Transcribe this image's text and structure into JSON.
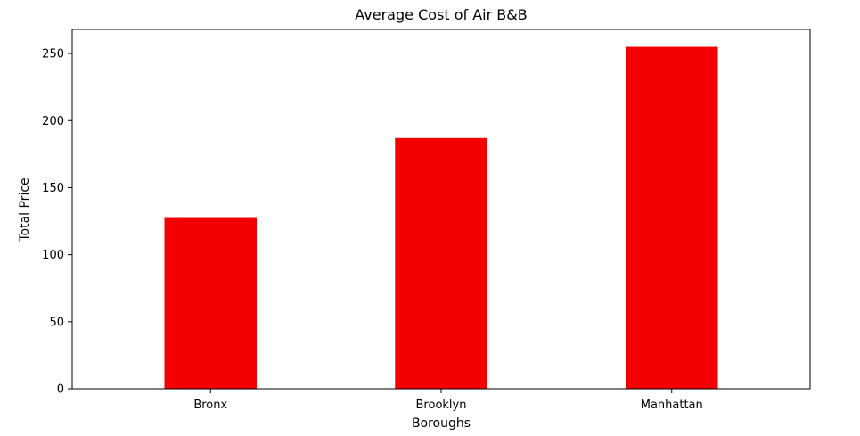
{
  "chart_data": {
    "type": "bar",
    "title": "Average Cost of Air B&B",
    "xlabel": "Boroughs",
    "ylabel": "Total Price",
    "categories": [
      "Bronx",
      "Brooklyn",
      "Manhattan"
    ],
    "values": [
      128,
      187,
      255
    ],
    "ylim": [
      0,
      268
    ],
    "yticks": [
      0,
      50,
      100,
      150,
      200,
      250
    ],
    "bar_color": "#f50000",
    "grid": false,
    "legend": "none"
  }
}
